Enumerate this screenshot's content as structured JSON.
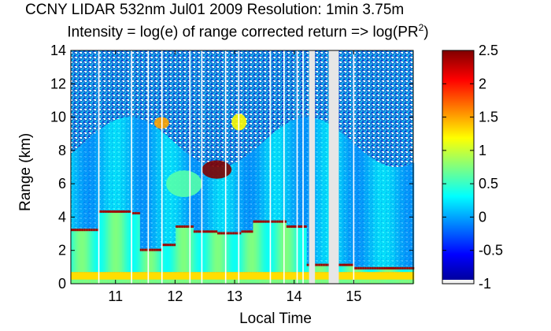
{
  "chart_data": {
    "type": "heatmap",
    "title": "CCNY LIDAR 532nm Jul01 2009 Resolution: 1min 3.75m",
    "subtitle_prefix": "Intensity = log(e) of range corrected return => log(PR",
    "subtitle_sup": "2",
    "subtitle_suffix": ")",
    "xlabel": "Local Time",
    "ylabel": "Range (km)",
    "xlim": [
      10.25,
      16.0
    ],
    "ylim": [
      0,
      14
    ],
    "xticks": [
      11,
      12,
      13,
      14,
      15
    ],
    "yticks": [
      0,
      2,
      4,
      6,
      8,
      10,
      12,
      14
    ],
    "colorbar": {
      "range": [
        -1,
        2.5
      ],
      "ticks": [
        2.5,
        2,
        1.5,
        1,
        0.5,
        0,
        -0.5,
        -1
      ],
      "tick_labels": [
        "2.5",
        "2",
        "1.5",
        "1",
        "0.5",
        "0",
        "-0.5",
        "-1"
      ],
      "colormap": "jet"
    },
    "data_gaps_hours": [
      [
        14.25,
        14.35
      ],
      [
        14.58,
        14.75
      ]
    ],
    "profile_breaks_hours": [
      10.72,
      11.27,
      11.55,
      11.78,
      12.25,
      12.45,
      12.85,
      13.07,
      13.6,
      13.83,
      14.05,
      14.15,
      15.0
    ],
    "layers": {
      "boundary_layer_top_km": [
        [
          10.25,
          3.3
        ],
        [
          10.7,
          4.4
        ],
        [
          11.25,
          4.3
        ],
        [
          11.4,
          2.1
        ],
        [
          11.75,
          2.4
        ],
        [
          12.0,
          3.5
        ],
        [
          12.3,
          3.2
        ],
        [
          12.7,
          3.1
        ],
        [
          13.1,
          3.2
        ],
        [
          13.3,
          3.8
        ],
        [
          13.85,
          3.5
        ],
        [
          14.2,
          1.2
        ],
        [
          15.0,
          1.0
        ],
        [
          16.0,
          1.0
        ]
      ],
      "clouds": [
        {
          "t_start": 12.45,
          "t_end": 12.95,
          "range_km": [
            6.3,
            7.4
          ],
          "value": 2.5
        },
        {
          "t_start": 11.65,
          "t_end": 11.9,
          "range_km": [
            9.3,
            10.0
          ],
          "value": 1.5
        },
        {
          "t_start": 12.95,
          "t_end": 13.2,
          "range_km": [
            9.2,
            10.2
          ],
          "value": 1.2
        },
        {
          "t_start": 11.85,
          "t_end": 12.45,
          "range_km": [
            5.2,
            6.8
          ],
          "value": 0.6
        }
      ]
    }
  }
}
